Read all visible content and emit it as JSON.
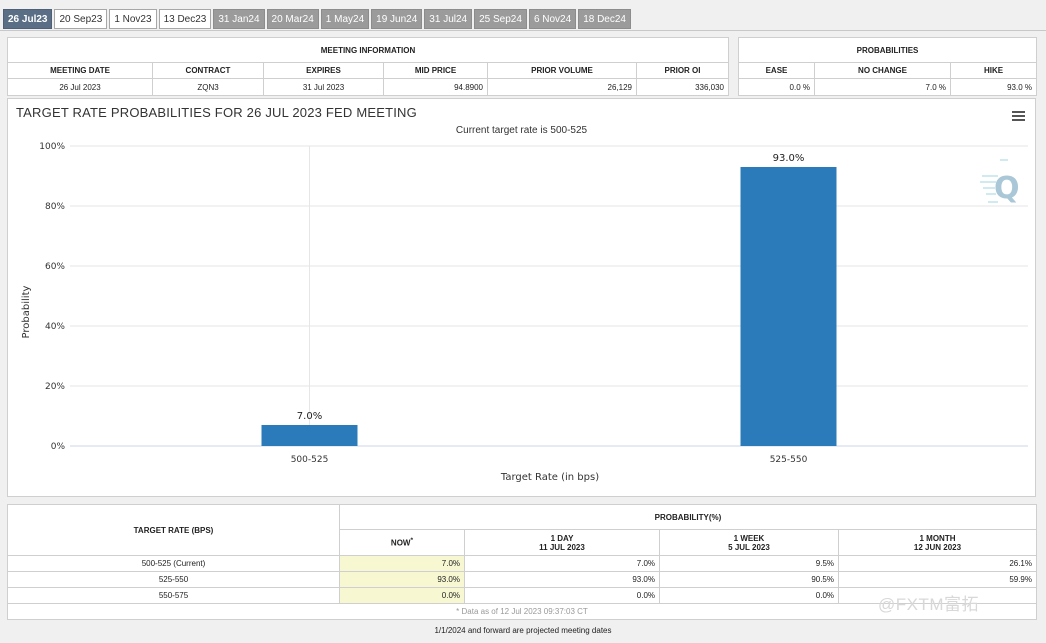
{
  "tabs": [
    {
      "label": "26 Jul23",
      "state": "active"
    },
    {
      "label": "20 Sep23",
      "state": "normal"
    },
    {
      "label": "1 Nov23",
      "state": "normal"
    },
    {
      "label": "13 Dec23",
      "state": "normal"
    },
    {
      "label": "31 Jan24",
      "state": "dim"
    },
    {
      "label": "20 Mar24",
      "state": "dim"
    },
    {
      "label": "1 May24",
      "state": "dim"
    },
    {
      "label": "19 Jun24",
      "state": "dim"
    },
    {
      "label": "31 Jul24",
      "state": "dim"
    },
    {
      "label": "25 Sep24",
      "state": "dim"
    },
    {
      "label": "6 Nov24",
      "state": "dim"
    },
    {
      "label": "18 Dec24",
      "state": "dim"
    }
  ],
  "meeting_info": {
    "header": "MEETING INFORMATION",
    "columns": [
      "MEETING DATE",
      "CONTRACT",
      "EXPIRES",
      "MID PRICE",
      "PRIOR VOLUME",
      "PRIOR OI"
    ],
    "values": [
      "26 Jul 2023",
      "ZQN3",
      "31 Jul 2023",
      "94.8900",
      "26,129",
      "336,030"
    ]
  },
  "probabilities": {
    "header": "PROBABILITIES",
    "columns": [
      "EASE",
      "NO CHANGE",
      "HIKE"
    ],
    "values": [
      "0.0 %",
      "7.0 %",
      "93.0 %"
    ]
  },
  "chart": {
    "title": "TARGET RATE PROBABILITIES FOR 26 JUL 2023 FED MEETING",
    "subtitle": "Current target rate is 500-525",
    "ylabel": "Probability",
    "xlabel": "Target Rate (in bps)",
    "yticks": [
      "0%",
      "20%",
      "40%",
      "60%",
      "80%",
      "100%"
    ],
    "bar_labels": [
      "7.0%",
      "93.0%"
    ],
    "logo_letter": "Q"
  },
  "chart_data": {
    "type": "bar",
    "title": "TARGET RATE PROBABILITIES FOR 26 JUL 2023 FED MEETING",
    "subtitle": "Current target rate is 500-525",
    "xlabel": "Target Rate (in bps)",
    "ylabel": "Probability",
    "categories": [
      "500-525",
      "525-550"
    ],
    "values": [
      7.0,
      93.0
    ],
    "ylim": [
      0,
      100
    ],
    "color": "#2b7bba",
    "grid": true
  },
  "bottom_table": {
    "left_header": "TARGET RATE (BPS)",
    "prob_header": "PROBABILITY(%)",
    "now": {
      "label": "NOW",
      "mark": "*"
    },
    "periods": [
      {
        "label": "1 DAY",
        "date": "11 JUL 2023"
      },
      {
        "label": "1 WEEK",
        "date": "5 JUL 2023"
      },
      {
        "label": "1 MONTH",
        "date": "12 JUN 2023"
      }
    ],
    "rows": [
      {
        "rate": "500-525 (Current)",
        "now": "7.0%",
        "d1": "7.0%",
        "w1": "9.5%",
        "m1": "26.1%"
      },
      {
        "rate": "525-550",
        "now": "93.0%",
        "d1": "93.0%",
        "w1": "90.5%",
        "m1": "59.9%"
      },
      {
        "rate": "550-575",
        "now": "0.0%",
        "d1": "0.0%",
        "w1": "0.0%",
        "m1": ""
      }
    ],
    "footnote": "* Data as of 12 Jul 2023 09:37:03 CT",
    "projection_note": "1/1/2024 and forward are projected meeting dates"
  },
  "watermark": "@FXTM富拓",
  "colors": {
    "bar": "#2b7bba",
    "tab_active": "#5a6f86",
    "tab_dim": "#9b9b9b",
    "now_cell": "#f7f7d2"
  }
}
